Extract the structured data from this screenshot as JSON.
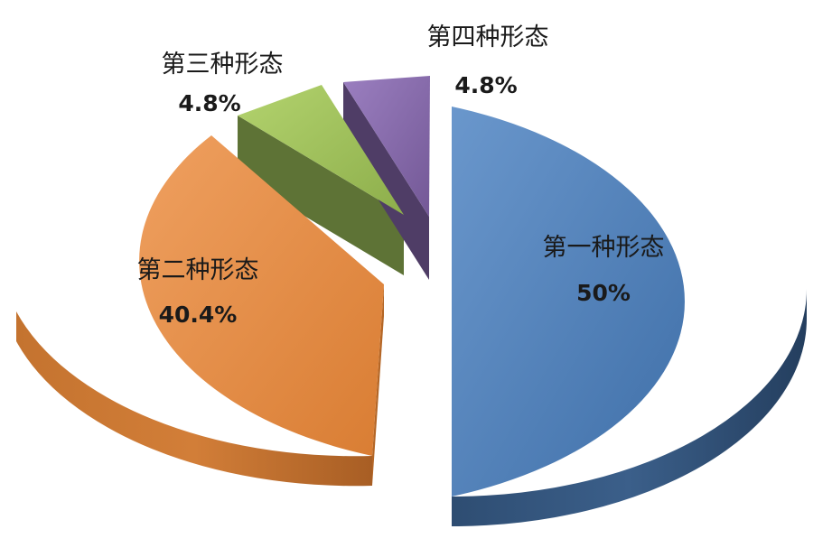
{
  "chart_data": {
    "type": "pie",
    "style": "3d-exploded",
    "title": "",
    "legend": "none",
    "slices": [
      {
        "label": "第一种形态",
        "value": 50,
        "value_label": "50%",
        "color": "#4F81BD",
        "side_color": "#2E4D72"
      },
      {
        "label": "第二种形态",
        "value": 40.4,
        "value_label": "40.4%",
        "color": "#E2893F",
        "side_color": "#B9682A"
      },
      {
        "label": "第三种形态",
        "value": 4.8,
        "value_label": "4.8%",
        "color": "#9BBB59",
        "side_color": "#5E7336"
      },
      {
        "label": "第四种形态",
        "value": 4.8,
        "value_label": "4.8%",
        "color": "#8064A2",
        "side_color": "#4F3D66"
      }
    ]
  }
}
